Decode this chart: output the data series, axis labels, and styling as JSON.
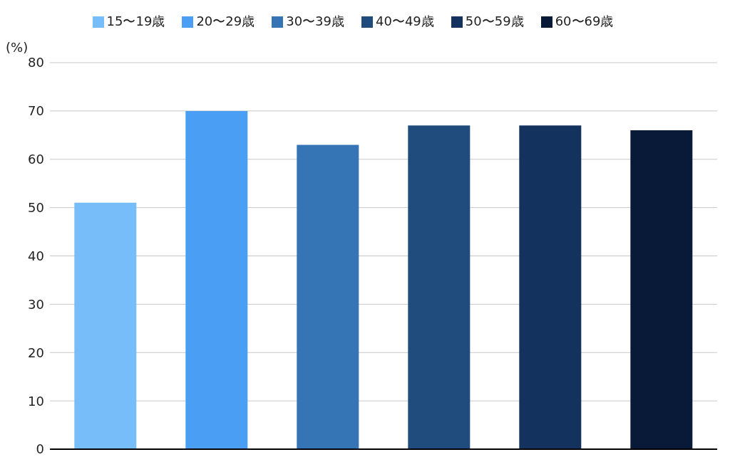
{
  "chart_data": {
    "type": "bar",
    "ylabel": "(%)",
    "categories": [
      null,
      null,
      null,
      null,
      null,
      null
    ],
    "series": [
      {
        "name": "15〜19歳",
        "color": "#76bdf9",
        "values": [
          51,
          null,
          null,
          null,
          null,
          null
        ]
      },
      {
        "name": "20〜29歳",
        "color": "#4a9ff5",
        "values": [
          null,
          70,
          null,
          null,
          null,
          null
        ]
      },
      {
        "name": "30〜39歳",
        "color": "#3574b5",
        "values": [
          null,
          null,
          63,
          null,
          null,
          null
        ]
      },
      {
        "name": "40〜49歳",
        "color": "#1f4b7d",
        "values": [
          null,
          null,
          null,
          67,
          null,
          null
        ]
      },
      {
        "name": "50〜59歳",
        "color": "#14325e",
        "values": [
          null,
          null,
          null,
          null,
          67,
          null
        ]
      },
      {
        "name": "60〜69歳",
        "color": "#081a38",
        "values": [
          null,
          null,
          null,
          null,
          null,
          66
        ]
      }
    ],
    "ylim": [
      0,
      80
    ],
    "yticks": [
      0,
      10,
      20,
      30,
      40,
      50,
      60,
      70,
      80
    ],
    "grid": "y",
    "legend": "top"
  }
}
